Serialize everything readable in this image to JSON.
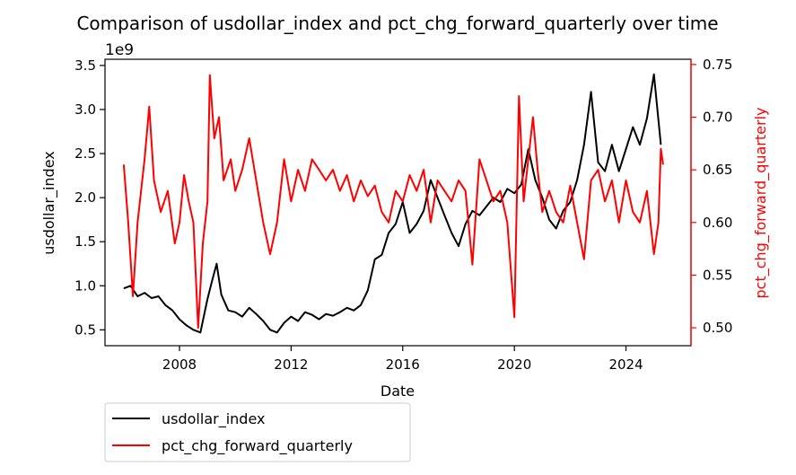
{
  "chart_data": {
    "type": "line",
    "title": "Comparison of usdollar_index and pct_chg_forward_quarterly over time",
    "xlabel": "Date",
    "ylabel_left": "usdollar_index",
    "ylabel_right": "pct_chg_forward_quarterly",
    "left_axis_offset_label": "1e9",
    "xlim": [
      "2005-05-01",
      "2026-05-01"
    ],
    "ylim_left": [
      0.32,
      3.57
    ],
    "ylim_right": [
      0.483,
      0.755
    ],
    "x_ticks": [
      "2008",
      "2012",
      "2016",
      "2020",
      "2024"
    ],
    "y_ticks_left": [
      "0.5",
      "1.0",
      "1.5",
      "2.0",
      "2.5",
      "3.0",
      "3.5"
    ],
    "y_ticks_right": [
      "0.50",
      "0.55",
      "0.60",
      "0.65",
      "0.70",
      "0.75"
    ],
    "grid": false,
    "legend_position": "below-left",
    "colors": {
      "left_axis": "#000000",
      "right_axis": "#ff0000"
    },
    "series": [
      {
        "name": "usdollar_index",
        "axis": "left",
        "color": "#000000",
        "points": [
          [
            "2006-01-01",
            0.97
          ],
          [
            "2006-04-01",
            1.0
          ],
          [
            "2006-07-01",
            0.88
          ],
          [
            "2006-10-01",
            0.92
          ],
          [
            "2007-01-01",
            0.86
          ],
          [
            "2007-04-01",
            0.88
          ],
          [
            "2007-07-01",
            0.78
          ],
          [
            "2007-10-01",
            0.72
          ],
          [
            "2008-01-01",
            0.62
          ],
          [
            "2008-04-01",
            0.55
          ],
          [
            "2008-07-01",
            0.5
          ],
          [
            "2008-10-01",
            0.47
          ],
          [
            "2009-01-01",
            0.85
          ],
          [
            "2009-03-01",
            1.05
          ],
          [
            "2009-05-01",
            1.25
          ],
          [
            "2009-07-01",
            0.9
          ],
          [
            "2009-10-01",
            0.72
          ],
          [
            "2010-01-01",
            0.7
          ],
          [
            "2010-04-01",
            0.65
          ],
          [
            "2010-07-01",
            0.75
          ],
          [
            "2010-10-01",
            0.68
          ],
          [
            "2011-01-01",
            0.6
          ],
          [
            "2011-04-01",
            0.5
          ],
          [
            "2011-07-01",
            0.47
          ],
          [
            "2011-10-01",
            0.58
          ],
          [
            "2012-01-01",
            0.65
          ],
          [
            "2012-04-01",
            0.6
          ],
          [
            "2012-07-01",
            0.7
          ],
          [
            "2012-10-01",
            0.67
          ],
          [
            "2013-01-01",
            0.62
          ],
          [
            "2013-04-01",
            0.68
          ],
          [
            "2013-07-01",
            0.66
          ],
          [
            "2013-10-01",
            0.7
          ],
          [
            "2014-01-01",
            0.75
          ],
          [
            "2014-04-01",
            0.72
          ],
          [
            "2014-07-01",
            0.78
          ],
          [
            "2014-10-01",
            0.95
          ],
          [
            "2015-01-01",
            1.3
          ],
          [
            "2015-04-01",
            1.35
          ],
          [
            "2015-07-01",
            1.6
          ],
          [
            "2015-10-01",
            1.7
          ],
          [
            "2016-01-01",
            1.95
          ],
          [
            "2016-04-01",
            1.6
          ],
          [
            "2016-07-01",
            1.7
          ],
          [
            "2016-10-01",
            1.85
          ],
          [
            "2017-01-01",
            2.2
          ],
          [
            "2017-04-01",
            2.0
          ],
          [
            "2017-07-01",
            1.8
          ],
          [
            "2017-10-01",
            1.6
          ],
          [
            "2018-01-01",
            1.45
          ],
          [
            "2018-04-01",
            1.7
          ],
          [
            "2018-07-01",
            1.85
          ],
          [
            "2018-10-01",
            1.8
          ],
          [
            "2019-01-01",
            1.9
          ],
          [
            "2019-04-01",
            2.0
          ],
          [
            "2019-07-01",
            1.95
          ],
          [
            "2019-10-01",
            2.1
          ],
          [
            "2020-01-01",
            2.05
          ],
          [
            "2020-04-01",
            2.15
          ],
          [
            "2020-07-01",
            2.55
          ],
          [
            "2020-10-01",
            2.2
          ],
          [
            "2021-01-01",
            2.0
          ],
          [
            "2021-04-01",
            1.75
          ],
          [
            "2021-07-01",
            1.65
          ],
          [
            "2021-10-01",
            1.85
          ],
          [
            "2022-01-01",
            1.95
          ],
          [
            "2022-04-01",
            2.2
          ],
          [
            "2022-07-01",
            2.6
          ],
          [
            "2022-10-01",
            3.2
          ],
          [
            "2023-01-01",
            2.4
          ],
          [
            "2023-04-01",
            2.3
          ],
          [
            "2023-07-01",
            2.6
          ],
          [
            "2023-10-01",
            2.3
          ],
          [
            "2024-01-01",
            2.55
          ],
          [
            "2024-04-01",
            2.8
          ],
          [
            "2024-07-01",
            2.6
          ],
          [
            "2024-10-01",
            2.9
          ],
          [
            "2025-01-01",
            3.4
          ],
          [
            "2025-04-01",
            2.6
          ]
        ]
      },
      {
        "name": "pct_chg_forward_quarterly",
        "axis": "right",
        "color": "#ff0000",
        "points": [
          [
            "2006-01-01",
            0.655
          ],
          [
            "2006-03-01",
            0.6
          ],
          [
            "2006-05-01",
            0.53
          ],
          [
            "2006-07-01",
            0.6
          ],
          [
            "2006-10-01",
            0.66
          ],
          [
            "2006-12-01",
            0.71
          ],
          [
            "2007-02-01",
            0.64
          ],
          [
            "2007-05-01",
            0.61
          ],
          [
            "2007-08-01",
            0.63
          ],
          [
            "2007-11-01",
            0.58
          ],
          [
            "2008-01-01",
            0.6
          ],
          [
            "2008-03-01",
            0.645
          ],
          [
            "2008-05-01",
            0.62
          ],
          [
            "2008-07-01",
            0.6
          ],
          [
            "2008-09-01",
            0.5
          ],
          [
            "2008-11-01",
            0.58
          ],
          [
            "2009-01-01",
            0.62
          ],
          [
            "2009-02-01",
            0.74
          ],
          [
            "2009-04-01",
            0.68
          ],
          [
            "2009-06-01",
            0.7
          ],
          [
            "2009-08-01",
            0.64
          ],
          [
            "2009-11-01",
            0.66
          ],
          [
            "2010-01-01",
            0.63
          ],
          [
            "2010-04-01",
            0.65
          ],
          [
            "2010-07-01",
            0.68
          ],
          [
            "2010-10-01",
            0.64
          ],
          [
            "2011-01-01",
            0.6
          ],
          [
            "2011-04-01",
            0.57
          ],
          [
            "2011-07-01",
            0.6
          ],
          [
            "2011-10-01",
            0.66
          ],
          [
            "2012-01-01",
            0.62
          ],
          [
            "2012-04-01",
            0.65
          ],
          [
            "2012-07-01",
            0.63
          ],
          [
            "2012-10-01",
            0.66
          ],
          [
            "2013-01-01",
            0.65
          ],
          [
            "2013-04-01",
            0.64
          ],
          [
            "2013-07-01",
            0.65
          ],
          [
            "2013-10-01",
            0.63
          ],
          [
            "2014-01-01",
            0.645
          ],
          [
            "2014-04-01",
            0.62
          ],
          [
            "2014-07-01",
            0.64
          ],
          [
            "2014-10-01",
            0.625
          ],
          [
            "2015-01-01",
            0.635
          ],
          [
            "2015-04-01",
            0.61
          ],
          [
            "2015-07-01",
            0.6
          ],
          [
            "2015-10-01",
            0.63
          ],
          [
            "2016-01-01",
            0.62
          ],
          [
            "2016-04-01",
            0.645
          ],
          [
            "2016-07-01",
            0.63
          ],
          [
            "2016-10-01",
            0.65
          ],
          [
            "2017-01-01",
            0.6
          ],
          [
            "2017-04-01",
            0.64
          ],
          [
            "2017-07-01",
            0.63
          ],
          [
            "2017-10-01",
            0.62
          ],
          [
            "2018-01-01",
            0.64
          ],
          [
            "2018-04-01",
            0.63
          ],
          [
            "2018-07-01",
            0.56
          ],
          [
            "2018-10-01",
            0.66
          ],
          [
            "2019-01-01",
            0.64
          ],
          [
            "2019-04-01",
            0.62
          ],
          [
            "2019-07-01",
            0.63
          ],
          [
            "2019-10-01",
            0.6
          ],
          [
            "2020-01-01",
            0.51
          ],
          [
            "2020-03-01",
            0.72
          ],
          [
            "2020-05-01",
            0.62
          ],
          [
            "2020-07-01",
            0.66
          ],
          [
            "2020-09-01",
            0.7
          ],
          [
            "2020-11-01",
            0.65
          ],
          [
            "2021-01-01",
            0.61
          ],
          [
            "2021-04-01",
            0.63
          ],
          [
            "2021-07-01",
            0.61
          ],
          [
            "2021-10-01",
            0.6
          ],
          [
            "2022-01-01",
            0.635
          ],
          [
            "2022-04-01",
            0.6
          ],
          [
            "2022-07-01",
            0.565
          ],
          [
            "2022-10-01",
            0.64
          ],
          [
            "2023-01-01",
            0.65
          ],
          [
            "2023-04-01",
            0.62
          ],
          [
            "2023-07-01",
            0.64
          ],
          [
            "2023-10-01",
            0.6
          ],
          [
            "2024-01-01",
            0.64
          ],
          [
            "2024-04-01",
            0.61
          ],
          [
            "2024-07-01",
            0.6
          ],
          [
            "2024-10-01",
            0.63
          ],
          [
            "2025-01-01",
            0.57
          ],
          [
            "2025-03-01",
            0.6
          ],
          [
            "2025-04-01",
            0.67
          ],
          [
            "2025-05-01",
            0.655
          ]
        ]
      }
    ]
  }
}
